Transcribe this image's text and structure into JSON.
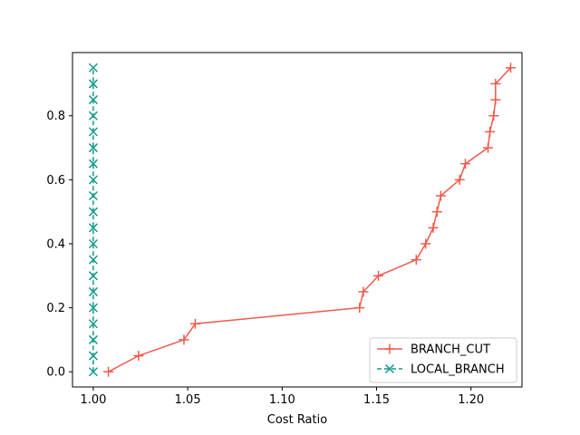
{
  "chart_data": {
    "type": "line",
    "title": "",
    "xlabel": "Cost Ratio",
    "ylabel": "",
    "xlim": [
      0.989,
      1.227
    ],
    "ylim": [
      -0.0475,
      0.9975
    ],
    "grid": false,
    "legend_position": "bottom-right",
    "xticks": [
      "1.00",
      "1.05",
      "1.10",
      "1.15",
      "1.20"
    ],
    "yticks": [
      "0.0",
      "0.2",
      "0.4",
      "0.6",
      "0.8"
    ],
    "series": [
      {
        "name": "BRANCH_CUT",
        "color": "#ef5a4d",
        "marker": "plus",
        "line_style": "solid",
        "x": [
          1.008,
          1.024,
          1.048,
          1.054,
          1.141,
          1.143,
          1.151,
          1.171,
          1.176,
          1.18,
          1.182,
          1.184,
          1.194,
          1.197,
          1.209,
          1.21,
          1.212,
          1.213,
          1.213,
          1.221
        ],
        "y": [
          0.0,
          0.05,
          0.1,
          0.15,
          0.2,
          0.25,
          0.3,
          0.35,
          0.4,
          0.45,
          0.5,
          0.55,
          0.6,
          0.65,
          0.7,
          0.75,
          0.8,
          0.85,
          0.9,
          0.95
        ]
      },
      {
        "name": "LOCAL_BRANCH",
        "color": "#14998c",
        "marker": "x",
        "line_style": "dashed",
        "x": [
          1.0,
          1.0,
          1.0,
          1.0,
          1.0,
          1.0,
          1.0,
          1.0,
          1.0,
          1.0,
          1.0,
          1.0,
          1.0,
          1.0,
          1.0,
          1.0,
          1.0,
          1.0,
          1.0,
          1.0
        ],
        "y": [
          0.0,
          0.05,
          0.1,
          0.15,
          0.2,
          0.25,
          0.3,
          0.35,
          0.4,
          0.45,
          0.5,
          0.55,
          0.6,
          0.65,
          0.7,
          0.75,
          0.8,
          0.85,
          0.9,
          0.95
        ]
      }
    ]
  }
}
